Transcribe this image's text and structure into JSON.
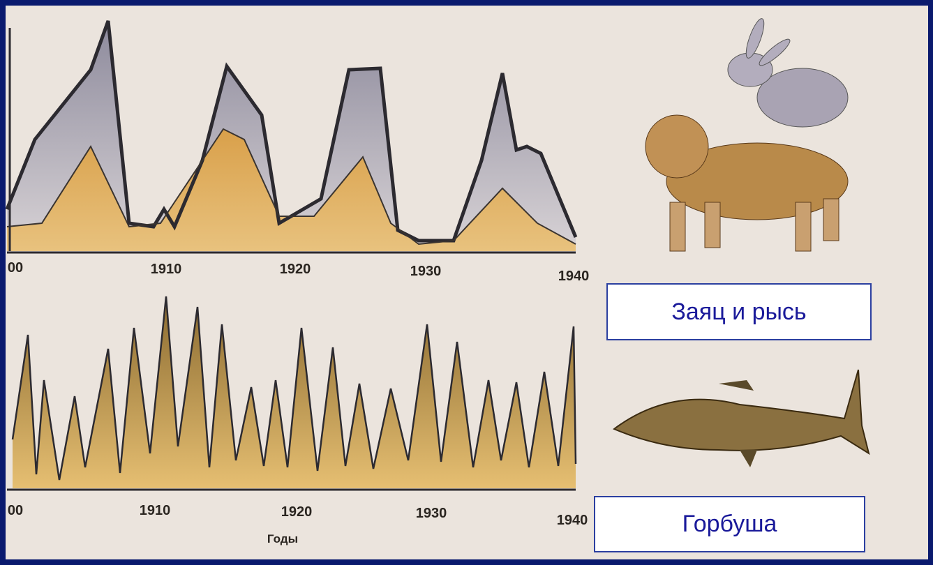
{
  "top_chart": {
    "x_labels": [
      "00",
      "1910",
      "1920",
      "1930",
      "1940"
    ]
  },
  "bottom_chart": {
    "x_labels": [
      "00",
      "1910",
      "1920",
      "1930",
      "1940"
    ],
    "axis_title": "Годы"
  },
  "labels": {
    "hare_lynx": "Заяц и рысь",
    "salmon": "Горбуша"
  }
}
